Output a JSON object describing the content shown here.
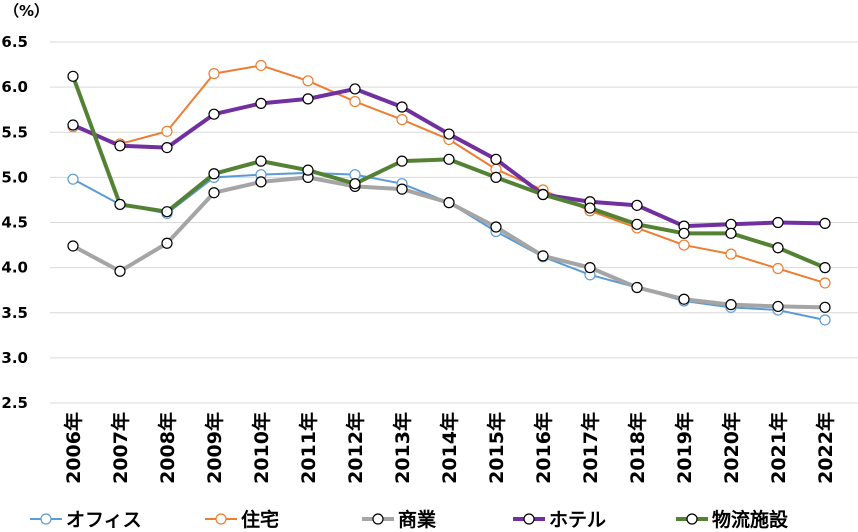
{
  "chart_data": {
    "type": "line",
    "unit_label": "（%）",
    "ylim": [
      2.5,
      6.5
    ],
    "yticks": [
      "6.5",
      "6.0",
      "5.5",
      "5.0",
      "4.5",
      "4.0",
      "3.5",
      "3.0",
      "2.5"
    ],
    "grid": true,
    "legend_position": "bottom",
    "categories": [
      "2006年",
      "2007年",
      "2008年",
      "2009年",
      "2010年",
      "2011年",
      "2012年",
      "2013年",
      "2014年",
      "2015年",
      "2016年",
      "2017年",
      "2018年",
      "2019年",
      "2020年",
      "2021年",
      "2022年"
    ],
    "series": [
      {
        "name": "オフィス",
        "color": "#5b9bd5",
        "width": 2,
        "values": [
          4.98,
          4.7,
          4.6,
          5.0,
          5.03,
          5.05,
          5.03,
          4.93,
          4.72,
          4.4,
          4.12,
          3.92,
          3.78,
          3.63,
          3.56,
          3.53,
          3.42
        ]
      },
      {
        "name": "住宅",
        "color": "#ed7d31",
        "width": 2,
        "values": [
          5.56,
          5.37,
          5.51,
          6.15,
          6.24,
          6.07,
          5.84,
          5.64,
          5.42,
          5.09,
          4.86,
          4.63,
          4.44,
          4.25,
          4.15,
          3.99,
          3.83
        ]
      },
      {
        "name": "商業",
        "color": "#a5a5a5",
        "width": 4,
        "values": [
          4.24,
          3.96,
          4.27,
          4.83,
          4.95,
          5.0,
          4.9,
          4.87,
          4.72,
          4.45,
          4.13,
          4.0,
          3.78,
          3.65,
          3.59,
          3.57,
          3.56
        ]
      },
      {
        "name": "ホテル",
        "color": "#7030a0",
        "width": 4,
        "values": [
          5.58,
          5.35,
          5.33,
          5.7,
          5.82,
          5.87,
          5.98,
          5.78,
          5.48,
          5.2,
          4.81,
          4.73,
          4.69,
          4.46,
          4.48,
          4.5,
          4.49
        ]
      },
      {
        "name": "物流施設",
        "color": "#548235",
        "width": 4,
        "values": [
          6.12,
          4.7,
          4.62,
          5.04,
          5.18,
          5.08,
          4.93,
          5.18,
          5.2,
          5.0,
          4.81,
          4.66,
          4.48,
          4.38,
          4.38,
          4.22,
          4.0
        ]
      }
    ]
  }
}
